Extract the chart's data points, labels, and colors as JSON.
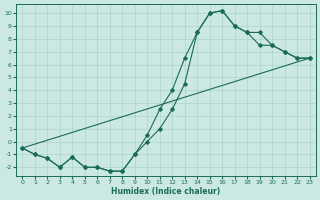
{
  "xlabel": "Humidex (Indice chaleur)",
  "bg_color": "#cce8e2",
  "line_color": "#1a6b5a",
  "grid_color": "#aad4cc",
  "xlim": [
    -0.5,
    23.5
  ],
  "ylim": [
    -2.7,
    10.7
  ],
  "xticks": [
    0,
    1,
    2,
    3,
    4,
    5,
    6,
    7,
    8,
    9,
    10,
    11,
    12,
    13,
    14,
    15,
    16,
    17,
    18,
    19,
    20,
    21,
    22,
    23
  ],
  "yticks": [
    -2,
    -1,
    0,
    1,
    2,
    3,
    4,
    5,
    6,
    7,
    8,
    9,
    10
  ],
  "line1_x": [
    0,
    1,
    2,
    3,
    4,
    5,
    6,
    7,
    8,
    9,
    10,
    11,
    12,
    13,
    14,
    15,
    16,
    17,
    18,
    19,
    20,
    21,
    22,
    23
  ],
  "line1_y": [
    -0.5,
    -1.0,
    -1.3,
    -2.0,
    -1.2,
    -2.0,
    -2.0,
    -2.3,
    -2.3,
    -1.0,
    0.0,
    1.0,
    2.5,
    4.5,
    8.5,
    10.0,
    10.2,
    9.0,
    8.5,
    7.5,
    7.5,
    7.0,
    6.5,
    6.5
  ],
  "line2_x": [
    0,
    1,
    2,
    3,
    4,
    5,
    6,
    7,
    8,
    9,
    10,
    11,
    12,
    13,
    14,
    15,
    16,
    17,
    18,
    19,
    20,
    21,
    22,
    23
  ],
  "line2_y": [
    -0.5,
    -1.0,
    -1.3,
    -2.0,
    -1.2,
    -2.0,
    -2.0,
    -2.3,
    -2.3,
    -1.0,
    0.5,
    2.5,
    4.0,
    6.5,
    8.5,
    10.0,
    10.2,
    9.0,
    8.5,
    8.5,
    7.5,
    7.0,
    6.5,
    6.5
  ],
  "line3_x": [
    0,
    23
  ],
  "line3_y": [
    -0.5,
    6.5
  ]
}
